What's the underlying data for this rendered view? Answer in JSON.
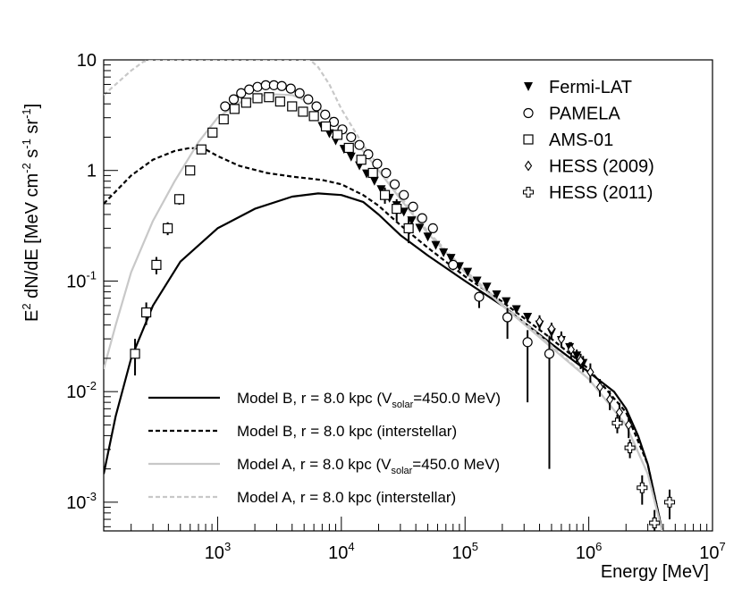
{
  "chart_data": {
    "type": "scatter",
    "title": "",
    "xlabel": "Energy [MeV]",
    "ylabel": "E² dN/dE [MeV cm⁻² s⁻¹ sr⁻¹]",
    "ylabel_parts": {
      "main": "E",
      "sup1": "2",
      "mid": " dN/dE [MeV cm",
      "sup2": "-2",
      "mid2": " s",
      "sup3": "-1",
      "mid3": " sr",
      "sup4": "-1",
      "end": "]"
    },
    "xscale": "log",
    "yscale": "log",
    "xlim": [
      120,
      10000000
    ],
    "ylim": [
      0.00055,
      10
    ],
    "x_ticks": [
      {
        "value": 1000,
        "base": "10",
        "exp": "3"
      },
      {
        "value": 10000,
        "base": "10",
        "exp": "4"
      },
      {
        "value": 100000,
        "base": "10",
        "exp": "5"
      },
      {
        "value": 1000000,
        "base": "10",
        "exp": "6"
      },
      {
        "value": 10000000,
        "base": "10",
        "exp": "7"
      }
    ],
    "y_ticks": [
      {
        "value": 0.001,
        "base": "10",
        "exp": "-3"
      },
      {
        "value": 0.01,
        "base": "10",
        "exp": "-2"
      },
      {
        "value": 0.1,
        "base": "10",
        "exp": "-1"
      },
      {
        "value": 1,
        "base": "1",
        "exp": ""
      },
      {
        "value": 10,
        "base": "10",
        "exp": ""
      }
    ],
    "data_legend": [
      {
        "name": "Fermi-LAT",
        "marker": "triangle-down-filled"
      },
      {
        "name": "PAMELA",
        "marker": "circle-open"
      },
      {
        "name": "AMS-01",
        "marker": "square-open"
      },
      {
        "name": "HESS (2009)",
        "marker": "diamond-open"
      },
      {
        "name": "HESS (2011)",
        "marker": "cross-open"
      }
    ],
    "model_legend": [
      {
        "label_main": "Model B, r = 8.0 kpc (V",
        "label_sub": "solar",
        "label_tail": "=450.0 MeV)",
        "color": "#000000",
        "dash": "solid"
      },
      {
        "label_main": "Model B, r = 8.0 kpc (interstellar)",
        "label_sub": "",
        "label_tail": "",
        "color": "#000000",
        "dash": "dashed"
      },
      {
        "label_main": "Model A, r = 8.0 kpc (V",
        "label_sub": "solar",
        "label_tail": "=450.0 MeV)",
        "color": "#c8c8c8",
        "dash": "solid"
      },
      {
        "label_main": "Model A, r = 8.0 kpc (interstellar)",
        "label_sub": "",
        "label_tail": "",
        "color": "#c8c8c8",
        "dash": "dashed"
      }
    ],
    "series": [
      {
        "name": "Model B, r = 8.0 kpc (Vsolar=450.0 MeV)",
        "kind": "line",
        "color": "#000000",
        "dash": "solid",
        "x": [
          120,
          150,
          200,
          300,
          500,
          1000,
          2000,
          4000,
          6500,
          10000,
          15000,
          20000,
          30000,
          50000,
          100000,
          200000,
          500000,
          1000000,
          1600000,
          2000000,
          2500000,
          3000000,
          4000000
        ],
        "y": [
          0.0018,
          0.006,
          0.02,
          0.06,
          0.15,
          0.3,
          0.45,
          0.58,
          0.62,
          0.6,
          0.52,
          0.4,
          0.26,
          0.17,
          0.1,
          0.06,
          0.027,
          0.015,
          0.01,
          0.007,
          0.004,
          0.0022,
          0.0005
        ]
      },
      {
        "name": "Model B, r = 8.0 kpc (interstellar)",
        "kind": "line",
        "color": "#000000",
        "dash": "dashed",
        "x": [
          120,
          200,
          300,
          450,
          600,
          800,
          1000,
          1500,
          2500,
          4000,
          7000,
          10000,
          15000,
          20000,
          30000,
          50000,
          100000,
          200000,
          500000,
          1000000,
          2000000,
          3000000,
          4000000
        ],
        "y": [
          0.5,
          0.9,
          1.25,
          1.5,
          1.6,
          1.55,
          1.35,
          1.1,
          0.95,
          0.88,
          0.82,
          0.75,
          0.6,
          0.48,
          0.32,
          0.2,
          0.11,
          0.065,
          0.03,
          0.016,
          0.0065,
          0.0022,
          0.0005
        ]
      },
      {
        "name": "Model A, r = 8.0 kpc (Vsolar=450.0 MeV)",
        "kind": "line",
        "color": "#c8c8c8",
        "dash": "solid",
        "x": [
          120,
          150,
          200,
          300,
          450,
          700,
          1000,
          1500,
          2500,
          4000,
          6000,
          8000,
          10000,
          15000,
          20000,
          30000,
          50000,
          100000,
          200000,
          500000,
          1000000,
          2000000,
          3000000,
          4000000
        ],
        "y": [
          0.016,
          0.04,
          0.12,
          0.35,
          0.8,
          1.8,
          3.0,
          4.1,
          4.9,
          4.8,
          4.0,
          3.1,
          2.4,
          1.5,
          1.0,
          0.55,
          0.27,
          0.12,
          0.06,
          0.025,
          0.013,
          0.005,
          0.0018,
          0.0005
        ]
      },
      {
        "name": "Model A, r = 8.0 kpc (interstellar)",
        "kind": "line",
        "color": "#c8c8c8",
        "dash": "dashed",
        "x": [
          120,
          150,
          200,
          250,
          280,
          5600,
          6500,
          8000,
          10000,
          15000,
          20000,
          30000,
          50000,
          100000,
          200000,
          500000,
          1000000,
          2000000,
          3000000,
          4000000
        ],
        "y": [
          4.8,
          6.0,
          8.0,
          9.6,
          10.0,
          10.0,
          8.6,
          6.0,
          3.6,
          1.7,
          1.1,
          0.58,
          0.28,
          0.125,
          0.062,
          0.026,
          0.013,
          0.005,
          0.0018,
          0.0005
        ]
      },
      {
        "name": "Fermi-LAT",
        "kind": "points",
        "marker": "triangle-down-filled",
        "x": [
          7000,
          8000,
          9000,
          10500,
          12000,
          14000,
          16000,
          18500,
          21000,
          24500,
          28000,
          32000,
          37000,
          43000,
          50000,
          58000,
          67000,
          77000,
          90000,
          105000,
          125000,
          150000,
          180000,
          215000,
          260000,
          320000,
          400000,
          500000,
          600000,
          700000,
          800000,
          900000
        ],
        "y": [
          2.5,
          2.15,
          1.85,
          1.55,
          1.32,
          1.1,
          0.93,
          0.8,
          0.67,
          0.56,
          0.48,
          0.42,
          0.35,
          0.3,
          0.25,
          0.21,
          0.18,
          0.16,
          0.135,
          0.12,
          0.1,
          0.088,
          0.075,
          0.065,
          0.055,
          0.047,
          0.04,
          0.034,
          0.029,
          0.025,
          0.021,
          0.018
        ],
        "yerr": [
          0.1,
          0.08,
          0.07,
          0.06,
          0.05,
          0.04,
          0.035,
          0.03,
          0.025,
          0.02,
          0.02,
          0.02,
          0.015,
          0.015,
          0.012,
          0.01,
          0.01,
          0.01,
          0.008,
          0.007,
          0.006,
          0.006,
          0.005,
          0.004,
          0.004,
          0.004,
          0.004,
          0.004,
          0.003,
          0.003,
          0.003,
          0.003
        ]
      },
      {
        "name": "PAMELA",
        "kind": "points",
        "marker": "circle-open",
        "x": [
          1150,
          1350,
          1550,
          1800,
          2100,
          2450,
          2850,
          3300,
          3900,
          4600,
          5400,
          6300,
          7400,
          8700,
          10200,
          12000,
          14000,
          16500,
          19500,
          23000,
          27000,
          32000,
          38000,
          45000,
          55000,
          80000,
          130000,
          220000,
          320000,
          480000
        ],
        "y": [
          3.8,
          4.4,
          5.0,
          5.4,
          5.7,
          5.9,
          5.9,
          5.8,
          5.5,
          5.0,
          4.4,
          3.8,
          3.2,
          2.75,
          2.35,
          2.0,
          1.7,
          1.4,
          1.15,
          0.95,
          0.75,
          0.6,
          0.47,
          0.37,
          0.3,
          0.14,
          0.072,
          0.047,
          0.028,
          0.022
        ],
        "yerr_hi": [
          0,
          0,
          0,
          0,
          0,
          0,
          0,
          0,
          0,
          0,
          0,
          0,
          0,
          0,
          0,
          0,
          0,
          0,
          0,
          0,
          0,
          0,
          0,
          0,
          0,
          0.01,
          0.008,
          0.01,
          0.008,
          0.01
        ],
        "yerr_lo": [
          0,
          0,
          0,
          0,
          0,
          0,
          0,
          0,
          0,
          0,
          0,
          0,
          0,
          0,
          0,
          0,
          0,
          0,
          0,
          0,
          0,
          0,
          0,
          0,
          0,
          0.015,
          0.015,
          0.017,
          0.02,
          0.02
        ]
      },
      {
        "name": "AMS-01",
        "kind": "points",
        "marker": "square-open",
        "x": [
          215,
          265,
          320,
          395,
          490,
          600,
          740,
          910,
          1120,
          1370,
          1700,
          2100,
          2600,
          3200,
          4000,
          4900,
          6000,
          7500,
          9300,
          11500,
          14500,
          18000,
          22500,
          28000,
          35000
        ],
        "y": [
          0.022,
          0.052,
          0.14,
          0.3,
          0.55,
          1.0,
          1.55,
          2.2,
          2.9,
          3.6,
          4.1,
          4.5,
          4.6,
          4.2,
          3.8,
          3.4,
          3.1,
          2.5,
          2.1,
          1.6,
          1.25,
          0.95,
          0.6,
          0.45,
          0.3
        ],
        "yerr": [
          0.008,
          0.012,
          0.025,
          0.04,
          0.06,
          0.08,
          0.1,
          0.1,
          0.1,
          0.1,
          0.1,
          0.1,
          0.1,
          0.1,
          0.1,
          0.1,
          0.1,
          0.1,
          0.1,
          0.1,
          0.1,
          0.1,
          0.1,
          0.1,
          0.08
        ]
      },
      {
        "name": "HESS (2009)",
        "kind": "points",
        "marker": "diamond-open",
        "x": [
          400000,
          500000,
          600000,
          720000,
          860000,
          1030000,
          1230000,
          1480000,
          1770000,
          2100000
        ],
        "y": [
          0.043,
          0.037,
          0.03,
          0.024,
          0.019,
          0.015,
          0.011,
          0.0085,
          0.0065,
          0.005
        ],
        "yerr": [
          0.006,
          0.005,
          0.005,
          0.004,
          0.003,
          0.003,
          0.002,
          0.0017,
          0.0014,
          0.0012
        ]
      },
      {
        "name": "HESS (2011)",
        "kind": "points",
        "marker": "cross-open",
        "x": [
          1700000,
          2150000,
          2700000,
          3400000,
          4500000
        ],
        "y": [
          0.0052,
          0.0031,
          0.00135,
          0.00065,
          0.001
        ],
        "yerr": [
          0.001,
          0.0006,
          0.0004,
          0.0002,
          0.0003
        ]
      }
    ]
  }
}
